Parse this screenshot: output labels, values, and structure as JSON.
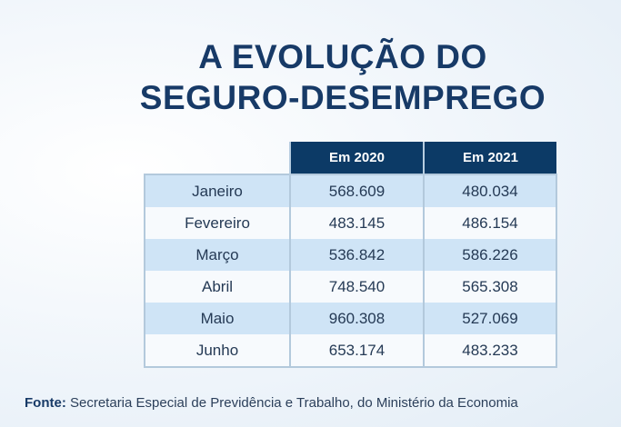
{
  "title": {
    "line1": "A EVOLUÇÃO DO",
    "line2": "SEGURO-DESEMPREGO"
  },
  "chart_data": {
    "type": "table",
    "columns": [
      "Em 2020",
      "Em 2021"
    ],
    "rows": [
      {
        "label": "Janeiro",
        "values": [
          "568.609",
          "480.034"
        ]
      },
      {
        "label": "Fevereiro",
        "values": [
          "483.145",
          "486.154"
        ]
      },
      {
        "label": "Março",
        "values": [
          "536.842",
          "586.226"
        ]
      },
      {
        "label": "Abril",
        "values": [
          "748.540",
          "565.308"
        ]
      },
      {
        "label": "Maio",
        "values": [
          "960.308",
          "527.069"
        ]
      },
      {
        "label": "Junho",
        "values": [
          "653.174",
          "483.233"
        ]
      }
    ]
  },
  "footer": {
    "label": "Fonte:",
    "text": " Secretaria Especial de Previdência e Trabalho, do Ministério da Economia"
  },
  "colors": {
    "header": "#0c3a66",
    "title": "#173a67",
    "stripe": "#cfe4f6"
  }
}
